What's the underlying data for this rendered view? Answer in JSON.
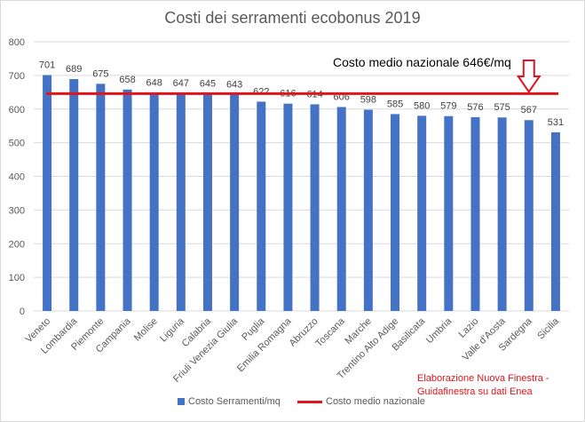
{
  "chart_data": {
    "type": "bar",
    "title": "Costi dei serramenti ecobonus 2019",
    "categories": [
      "Veneto",
      "Lombardia",
      "Piemonte",
      "Campania",
      "Molise",
      "Liguria",
      "Calabria",
      "Friuli Venezia Giulia",
      "Puglia",
      "Emilia Romagna",
      "Abruzzo",
      "Toscana",
      "Marche",
      "Trentino Alto Adige",
      "Basilicata",
      "Umbria",
      "Lazio",
      "Valle d'Aosta",
      "Sardegna",
      "Sicilia"
    ],
    "series": [
      {
        "name": "Costo Serramenti/mq",
        "color": "#4472c4",
        "values": [
          701,
          689,
          675,
          658,
          648,
          647,
          645,
          643,
          622,
          616,
          614,
          606,
          598,
          585,
          580,
          579,
          576,
          575,
          567,
          531
        ]
      }
    ],
    "reference_line": {
      "name": "Costo medio nazionale",
      "value": 646,
      "color": "#e0151c",
      "annotation": "Costo medio nazionale 646€/mq"
    },
    "ylim": [
      0,
      800
    ],
    "yticks": [
      0,
      100,
      200,
      300,
      400,
      500,
      600,
      700,
      800
    ],
    "grid": true,
    "legend": "bottom",
    "credit": [
      "Elaborazione Nuova Finestra -",
      "Guidafinestra su dati Enea"
    ]
  }
}
